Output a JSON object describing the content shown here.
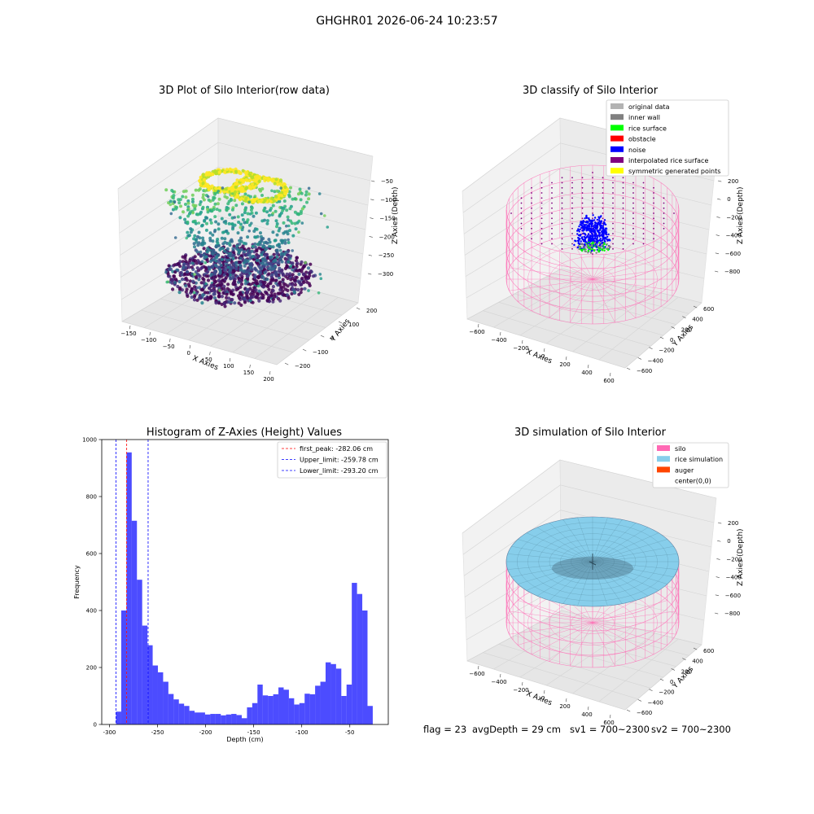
{
  "header": {
    "suptitle": "GHGHR01 2026-06-24 10:23:57"
  },
  "plots": {
    "raw": {
      "title": "3D Plot of Silo Interior(row data)",
      "xlabel": "X Axies",
      "ylabel": "Y Axies",
      "zlabel": "Z Axies (Depth)",
      "xticks": [
        "−150",
        "−100",
        "−50",
        "0",
        "50",
        "100",
        "150",
        "200"
      ],
      "yticks": [
        "200",
        "100",
        "0",
        "−100",
        "−200"
      ],
      "zticks": [
        "−50",
        "−100",
        "−150",
        "−200",
        "−250",
        "−300"
      ]
    },
    "classify": {
      "title": "3D classify of Silo Interior",
      "xlabel": "X Axies",
      "ylabel": "Y Axies",
      "zlabel": "Z Axies (Depth)",
      "xticks": [
        "−600",
        "−400",
        "−200",
        "0",
        "200",
        "400",
        "600"
      ],
      "yticks": [
        "600",
        "400",
        "200",
        "0",
        "−200",
        "−400",
        "−600"
      ],
      "zticks": [
        "200",
        "0",
        "−200",
        "−400",
        "−600",
        "−800"
      ],
      "legend": [
        {
          "label": "original data",
          "color": "#b3b3b3"
        },
        {
          "label": "inner wall",
          "color": "#808080"
        },
        {
          "label": "rice surface",
          "color": "#00ff00"
        },
        {
          "label": "obstacle",
          "color": "#ff0000"
        },
        {
          "label": "noise",
          "color": "#0000ff"
        },
        {
          "label": "interpolated rice surface",
          "color": "#800080"
        },
        {
          "label": "symmetric generated points",
          "color": "#ffff00"
        }
      ]
    },
    "simulation": {
      "title": "3D simulation of Silo Interior",
      "xlabel": "X Axies",
      "ylabel": "Y Axies",
      "zlabel": "Z Axies (Depth)",
      "xticks": [
        "−600",
        "−400",
        "−200",
        "0",
        "200",
        "400",
        "600"
      ],
      "yticks": [
        "600",
        "400",
        "200",
        "0",
        "−200",
        "−400",
        "−600"
      ],
      "zticks": [
        "200",
        "0",
        "−200",
        "−400",
        "−600",
        "−800"
      ],
      "legend": [
        {
          "label": "silo",
          "color": "#ff69b4"
        },
        {
          "label": "rice simulation",
          "color": "#87ceeb"
        },
        {
          "label": "auger",
          "color": "#ff4500"
        },
        {
          "label": "center(0,0)",
          "color": "#ffffff"
        }
      ]
    }
  },
  "chart_data": {
    "type": "bar",
    "title": "Histogram of Z-Axies (Height) Values",
    "xlabel": "Depth (cm)",
    "ylabel": "Frequency",
    "xlim": [
      -308,
      -10
    ],
    "ylim": [
      0,
      1000
    ],
    "xticks": [
      -300,
      -250,
      -200,
      -150,
      -100,
      -50
    ],
    "yticks": [
      0,
      200,
      400,
      600,
      800,
      1000
    ],
    "bar_color": "#0000ff",
    "bin_start": -293.2,
    "bin_width": 5.45,
    "values": [
      45,
      400,
      955,
      715,
      508,
      347,
      278,
      207,
      183,
      150,
      107,
      88,
      73,
      65,
      48,
      42,
      42,
      35,
      37,
      37,
      32,
      35,
      37,
      33,
      22,
      60,
      75,
      140,
      102,
      100,
      106,
      130,
      122,
      92,
      70,
      75,
      108,
      106,
      136,
      150,
      218,
      212,
      196,
      100,
      140,
      497,
      458,
      400,
      65
    ],
    "vlines": [
      {
        "label": "first_peak: -282.06 cm",
        "x": -282.06,
        "color": "#ff0000"
      },
      {
        "label": "Upper_limit: -259.78 cm",
        "x": -259.78,
        "color": "#0000ff"
      },
      {
        "label": "Lower_limit: -293.20 cm",
        "x": -293.2,
        "color": "#0000ff"
      }
    ],
    "legend_position": "upper right"
  },
  "footer": {
    "flag": "flag = 23",
    "avg_depth": "avgDepth = 29 cm",
    "sv1": "sv1 = 700~2300",
    "sv2": "sv2 = 700~2300"
  }
}
